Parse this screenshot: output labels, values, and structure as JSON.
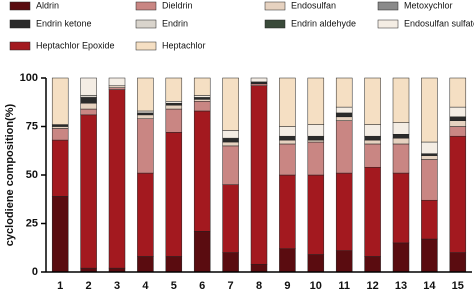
{
  "chart_data": {
    "type": "stacked_bar",
    "y_label": "cyclodiene composition(%)",
    "categories": [
      "1",
      "2",
      "3",
      "4",
      "5",
      "6",
      "7",
      "8",
      "9",
      "10",
      "11",
      "12",
      "13",
      "14",
      "15"
    ],
    "ylim": [
      0,
      100
    ],
    "yticks": [
      0,
      25,
      50,
      75,
      100
    ],
    "series": [
      {
        "name": "Aldrin",
        "color": "#5a0c10",
        "values": [
          39,
          2,
          2,
          8,
          8,
          21,
          10,
          4,
          12,
          9,
          11,
          8,
          15,
          17,
          10
        ]
      },
      {
        "name": "Heptachlor Epoxide",
        "color": "#a3191f",
        "values": [
          29,
          79,
          92,
          43,
          64,
          62,
          35,
          92,
          38,
          41,
          40,
          46,
          36,
          20,
          60
        ]
      },
      {
        "name": "Dieldrin",
        "color": "#c98683",
        "values": [
          6,
          3,
          1,
          28,
          12,
          5,
          20,
          1,
          16,
          17,
          27,
          12,
          15,
          21,
          5
        ]
      },
      {
        "name": "Endosulfan",
        "color": "#e6d2c0",
        "values": [
          1,
          3,
          1,
          2,
          2,
          1,
          2,
          0,
          2,
          1,
          2,
          2,
          3,
          2,
          3
        ]
      },
      {
        "name": "Endrin ketone",
        "color": "#2b2b2b",
        "values": [
          1,
          3,
          0,
          1,
          1,
          1,
          2,
          1,
          2,
          2,
          2,
          2,
          2,
          1,
          2
        ]
      },
      {
        "name": "Endrin",
        "color": "#d9d4cc",
        "values": [
          0,
          1,
          0,
          0,
          0,
          0,
          0,
          0,
          0,
          0,
          0,
          0,
          0,
          0,
          0
        ]
      },
      {
        "name": "Endrin aldehyde",
        "color": "#3a4a3a",
        "values": [
          0,
          0,
          0,
          0,
          0,
          0,
          0,
          0,
          0,
          0,
          0,
          0,
          0,
          0,
          0
        ]
      },
      {
        "name": "Endosulfan sulfate",
        "color": "#f4ede4",
        "values": [
          0,
          9,
          4,
          1,
          1,
          1,
          4,
          2,
          5,
          6,
          3,
          6,
          6,
          6,
          5
        ]
      },
      {
        "name": "Metoxychlor",
        "color": "#8a8a8a",
        "values": [
          0,
          0,
          0,
          0,
          0,
          0,
          0,
          0,
          0,
          0,
          0,
          0,
          0,
          0,
          0
        ]
      },
      {
        "name": "Heptachlor",
        "color": "#f5dfc3",
        "values": [
          24,
          0,
          0,
          17,
          12,
          9,
          27,
          0,
          25,
          24,
          15,
          24,
          23,
          33,
          15
        ]
      }
    ]
  }
}
